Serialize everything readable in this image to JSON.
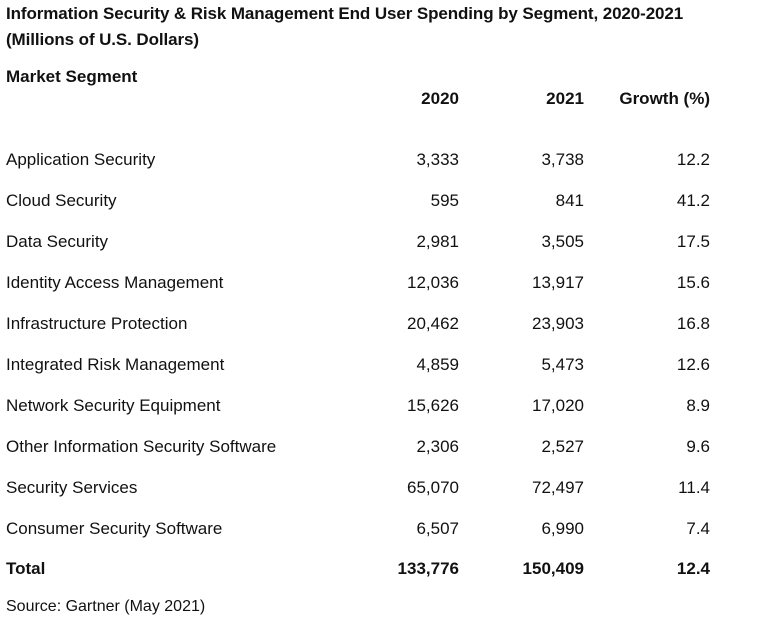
{
  "title": {
    "line1": "Information Security & Risk Management End User Spending by Segment, 2020-2021",
    "line2": "(Millions of U.S. Dollars)"
  },
  "headers": {
    "segment": "Market Segment",
    "y2020": "2020",
    "y2021": "2021",
    "growth": "Growth (%)"
  },
  "rows": [
    {
      "segment": "Application Security",
      "y2020": "3,333",
      "y2021": "3,738",
      "growth": "12.2"
    },
    {
      "segment": "Cloud Security",
      "y2020": "595",
      "y2021": "841",
      "growth": "41.2"
    },
    {
      "segment": "Data Security",
      "y2020": "2,981",
      "y2021": "3,505",
      "growth": "17.5"
    },
    {
      "segment": "Identity Access Management",
      "y2020": "12,036",
      "y2021": "13,917",
      "growth": "15.6"
    },
    {
      "segment": "Infrastructure Protection",
      "y2020": "20,462",
      "y2021": "23,903",
      "growth": "16.8"
    },
    {
      "segment": "Integrated Risk Management",
      "y2020": "4,859",
      "y2021": "5,473",
      "growth": "12.6"
    },
    {
      "segment": "Network Security Equipment",
      "y2020": "15,626",
      "y2021": "17,020",
      "growth": "8.9"
    },
    {
      "segment": "Other Information Security Software",
      "y2020": "2,306",
      "y2021": "2,527",
      "growth": "9.6"
    },
    {
      "segment": "Security Services",
      "y2020": "65,070",
      "y2021": "72,497",
      "growth": "11.4"
    },
    {
      "segment": "Consumer Security Software",
      "y2020": "6,507",
      "y2021": "6,990",
      "growth": "7.4"
    }
  ],
  "total": {
    "segment": "Total",
    "y2020": "133,776",
    "y2021": "150,409",
    "growth": "12.4"
  },
  "source": "Source: Gartner (May 2021)"
}
